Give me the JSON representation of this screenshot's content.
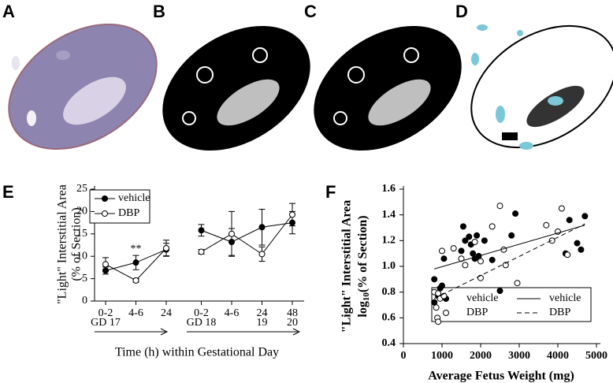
{
  "panels": [
    "A",
    "B",
    "C",
    "D"
  ],
  "chart_data": [
    {
      "type": "line",
      "label": "E",
      "ylabel": "\"Light\" Interstitial Area",
      "ylabel2": "(% of Section)",
      "xlabel": "Time (h) within Gestational Day",
      "categories": [
        "0-2",
        "4-6",
        "24",
        "0-2",
        "4-6",
        "24",
        "48"
      ],
      "day_labels": [
        "GD 17",
        null,
        null,
        "GD 18",
        null,
        "19",
        "20"
      ],
      "annotation": "**",
      "ylim": [
        0,
        25
      ],
      "yticks": [
        0,
        5,
        10,
        15,
        20,
        25
      ],
      "legend": "top-left",
      "series": [
        {
          "name": "vehicle",
          "color": "#000",
          "filled": true,
          "values": [
            6.8,
            8.6,
            11.5,
            15.8,
            13.2,
            16.5,
            17.5
          ],
          "errors": [
            0.8,
            1.6,
            1.4,
            1.3,
            3.0,
            4.0,
            2.5
          ]
        },
        {
          "name": "DBP",
          "color": "#000",
          "filled": false,
          "values": [
            8.2,
            4.6,
            11.8,
            11.0,
            15.0,
            10.5,
            19.3
          ],
          "errors": [
            1.5,
            0.4,
            1.8,
            0.5,
            5.0,
            1.6,
            2.5
          ]
        }
      ]
    },
    {
      "type": "scatter",
      "label": "F",
      "ylabel": "\"Light\" Interstitial Area",
      "ylabel2_parts": [
        "log",
        "10",
        "(% of Section)"
      ],
      "xlabel": "Average Fetus Weight (mg)",
      "xlim": [
        0,
        5000
      ],
      "xticks": [
        0,
        1000,
        2000,
        3000,
        4000,
        5000
      ],
      "ylim": [
        0.4,
        1.6
      ],
      "yticks": [
        0.4,
        0.6,
        0.8,
        {
          "value": 1,
          "label": "1.0"
        },
        1.2,
        1.4,
        1.6
      ],
      "legend": "bottom-right",
      "series": [
        {
          "name": "vehicle",
          "kind": "points",
          "filled": true,
          "x": [
            800,
            800,
            900,
            950,
            1000,
            1050,
            1500,
            1550,
            1600,
            1700,
            1750,
            1800,
            1850,
            1900,
            1950,
            2100,
            2300,
            2500,
            2800,
            2900,
            4200,
            4300,
            4500,
            4600,
            4700
          ],
          "y": [
            0.9,
            0.72,
            0.77,
            0.83,
            0.85,
            1.06,
            1.12,
            1.31,
            1.2,
            1.23,
            1.17,
            1.1,
            1.06,
            1.24,
            1.08,
            1.2,
            1.05,
            0.81,
            1.24,
            1.41,
            1.1,
            1.36,
            1.18,
            1.13,
            1.39
          ]
        },
        {
          "name": "DBP",
          "kind": "points",
          "filled": false,
          "x": [
            800,
            850,
            880,
            900,
            900,
            950,
            1000,
            1050,
            1300,
            1500,
            1600,
            1850,
            2000,
            2000,
            2300,
            2500,
            2600,
            2650,
            2950,
            3700,
            3850,
            4000,
            4100,
            4250
          ],
          "y": [
            0.8,
            0.68,
            0.6,
            0.57,
            0.79,
            0.75,
            1.12,
            0.77,
            1.14,
            1.06,
            1.01,
            1.19,
            0.91,
            1.04,
            1.31,
            1.47,
            1.13,
            1.01,
            0.87,
            1.32,
            1.2,
            1.27,
            1.45,
            1.09
          ]
        },
        {
          "name": "vehicle",
          "kind": "fit",
          "dash": false,
          "x": [
            800,
            4700
          ],
          "y": [
            0.98,
            1.32
          ]
        },
        {
          "name": "DBP",
          "kind": "fit",
          "dash": true,
          "x": [
            800,
            4700
          ],
          "y": [
            0.75,
            1.33
          ]
        }
      ]
    }
  ]
}
